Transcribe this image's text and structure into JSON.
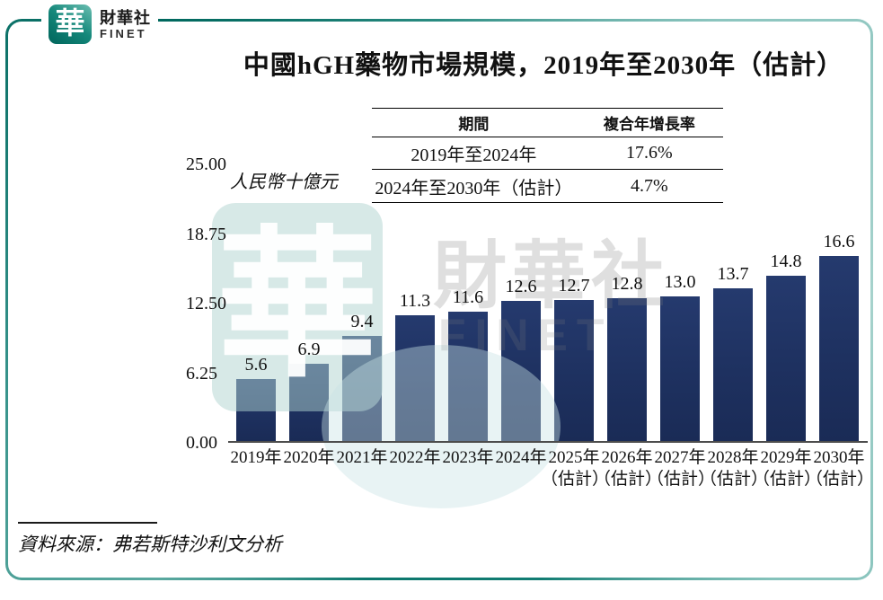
{
  "logo": {
    "emblem_char": "華",
    "name_zh": "財華社",
    "name_en": "FINET"
  },
  "title": "中國hGH藥物市場規模，2019年至2030年（估計）",
  "cagr_table": {
    "headers": [
      "期間",
      "複合年增長率"
    ],
    "rows": [
      [
        "2019年至2024年",
        "17.6%"
      ],
      [
        "2024年至2030年（估計）",
        "4.7%"
      ]
    ]
  },
  "chart_data": {
    "type": "bar",
    "title": "中國hGH藥物市場規模，2019年至2030年（估計）",
    "unit_label": "人民幣十億元",
    "categories": [
      "2019年",
      "2020年",
      "2021年",
      "2022年",
      "2023年",
      "2024年",
      "2025年（估計）",
      "2026年（估計）",
      "2027年（估計）",
      "2028年（估計）",
      "2029年（估計）",
      "2030年（估計）"
    ],
    "values": [
      5.6,
      6.9,
      9.4,
      11.3,
      11.6,
      12.6,
      12.7,
      12.8,
      13.0,
      13.7,
      14.8,
      16.6
    ],
    "value_labels": [
      "5.6",
      "6.9",
      "9.4",
      "11.3",
      "11.6",
      "12.6",
      "12.7",
      "12.8",
      "13.0",
      "13.7",
      "14.8",
      "16.6"
    ],
    "ylim": [
      0,
      25
    ],
    "yticks": [
      "25.00",
      "18.75",
      "12.50",
      "6.25",
      "0.00"
    ],
    "grid": false,
    "legend": false,
    "bar_color": "#1f3160",
    "axis_color": "#4d4d4d"
  },
  "watermark": {
    "emblem_char": "華",
    "text_zh": "財華社",
    "text_en": "FINET"
  },
  "source_note": "資料來源：弗若斯特沙利文分析",
  "colors": {
    "teal_dark": "#00685e",
    "teal_light": "#8cc5bf",
    "bar_navy": "#1f3160"
  }
}
